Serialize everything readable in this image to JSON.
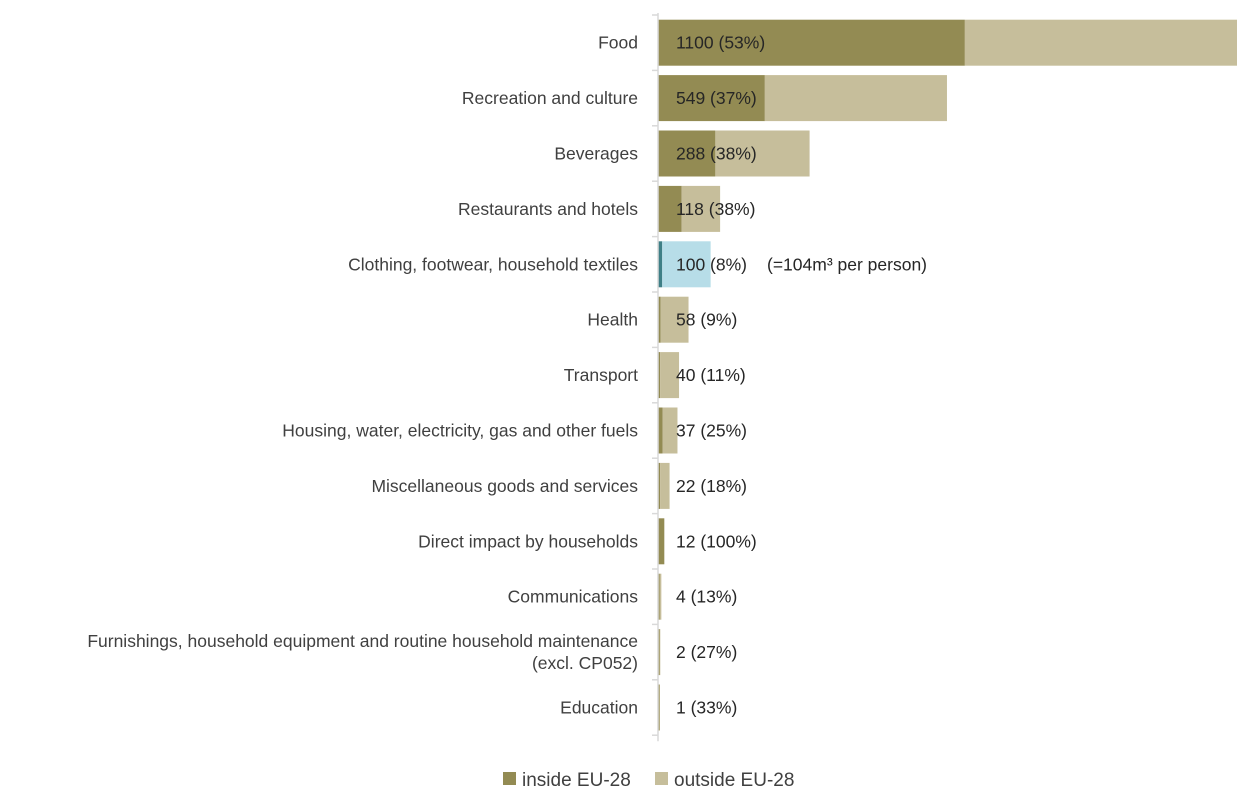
{
  "chart_data": {
    "type": "bar",
    "orientation": "horizontal",
    "stacked": true,
    "categories": [
      [
        "Food"
      ],
      [
        "Recreation and culture"
      ],
      [
        "Beverages"
      ],
      [
        "Restaurants and hotels"
      ],
      [
        "Clothing, footwear, household textiles"
      ],
      [
        "Health"
      ],
      [
        "Transport"
      ],
      [
        "Housing, water, electricity, gas and other fuels"
      ],
      [
        "Miscellaneous goods and services"
      ],
      [
        "Direct impact by households"
      ],
      [
        "Communications"
      ],
      [
        "Furnishings, household equipment and routine household maintenance",
        "(excl. CP052)"
      ],
      [
        "Education"
      ]
    ],
    "totals": [
      1100,
      549,
      288,
      118,
      100,
      58,
      40,
      37,
      22,
      12,
      4,
      2,
      1
    ],
    "series": [
      {
        "name": "inside EU-28",
        "values": [
          583,
          203,
          109,
          45,
          8,
          5,
          4,
          9,
          4,
          12,
          0.5,
          0.5,
          0.3
        ]
      },
      {
        "name": "outside EU-28",
        "values": [
          517,
          346,
          179,
          73,
          92,
          53,
          36,
          28,
          18,
          0,
          3.5,
          1.5,
          0.7
        ]
      }
    ],
    "data_labels": [
      "1100 (53%)",
      "549 (37%)",
      "288 (38%)",
      "118 (38%)",
      "100 (8%)",
      "58 (9%)",
      "40 (11%)",
      "37 (25%)",
      "22 (18%)",
      "12 (100%)",
      "4 (13%)",
      "2 (27%)",
      "1 (33%)"
    ],
    "annotations": [
      {
        "category_index": 4,
        "text": "(=104m³ per person)"
      }
    ],
    "highlight": {
      "category_index": 4,
      "inside_color": "#3f7f86",
      "outside_color": "#b7dde8"
    },
    "colors": {
      "inside EU-28": "#938b53",
      "outside EU-28": "#c6be9b",
      "axis": "#d9d9d9"
    },
    "xlim": [
      0,
      1100
    ],
    "grid": false,
    "legend": {
      "position": "bottom",
      "entries": [
        "inside EU-28",
        "outside EU-28"
      ]
    }
  }
}
